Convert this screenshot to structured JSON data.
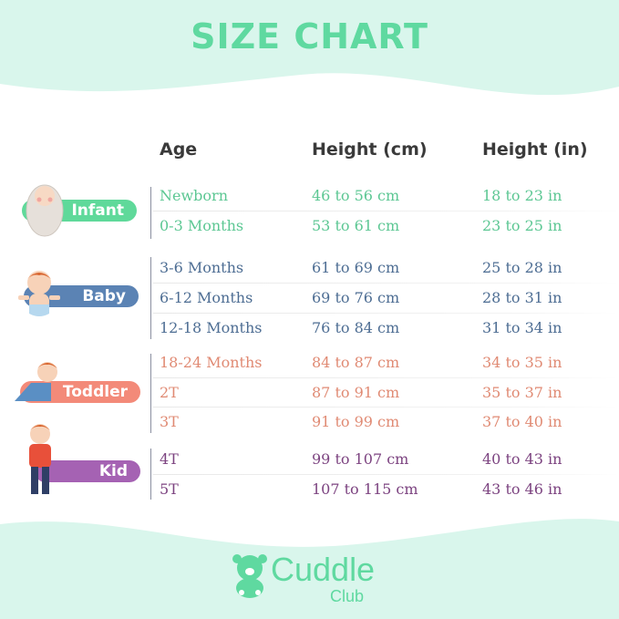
{
  "title": "SIZE CHART",
  "headers": {
    "age": "Age",
    "height_cm": "Height (cm)",
    "height_in": "Height (in)"
  },
  "colors": {
    "title": "#5fd9a0",
    "infant": "#5cc793",
    "baby": "#4d6d93",
    "toddler": "#e08a73",
    "kid": "#7c4380",
    "background_mint": "#d9f6ec"
  },
  "groups": [
    {
      "label": "Infant",
      "color_key": "infant",
      "badge_color": "#5fd99a",
      "rows": [
        {
          "age": "Newborn",
          "cm": "46 to 56 cm",
          "in": "18 to 23 in"
        },
        {
          "age": "0-3 Months",
          "cm": "53 to 61 cm",
          "in": "23 to 25 in"
        }
      ]
    },
    {
      "label": "Baby",
      "color_key": "baby",
      "badge_color": "#5b83b4",
      "rows": [
        {
          "age": "3-6 Months",
          "cm": "61 to 69 cm",
          "in": "25 to 28 in"
        },
        {
          "age": "6-12 Months",
          "cm": "69 to 76 cm",
          "in": "28 to 31 in"
        },
        {
          "age": "12-18 Months",
          "cm": "76 to 84 cm",
          "in": "31 to 34 in"
        }
      ]
    },
    {
      "label": "Toddler",
      "color_key": "toddler",
      "badge_color": "#f38a79",
      "rows": [
        {
          "age": "18-24 Months",
          "cm": "84 to 87 cm",
          "in": "34 to 35 in"
        },
        {
          "age": "2T",
          "cm": "87 to 91 cm",
          "in": "35 to 37 in"
        },
        {
          "age": "3T",
          "cm": "91 to 99 cm",
          "in": "37 to 40 in"
        }
      ]
    },
    {
      "label": "Kid",
      "color_key": "kid",
      "badge_color": "#a562b3",
      "rows": [
        {
          "age": "4T",
          "cm": "99 to 107 cm",
          "in": "40 to 43 in"
        },
        {
          "age": "5T",
          "cm": "107 to 115 cm",
          "in": "43 to 46 in"
        }
      ]
    }
  ],
  "logo": {
    "name": "Cuddle",
    "sub": "Club",
    "icon": "teddy-bear-icon"
  }
}
